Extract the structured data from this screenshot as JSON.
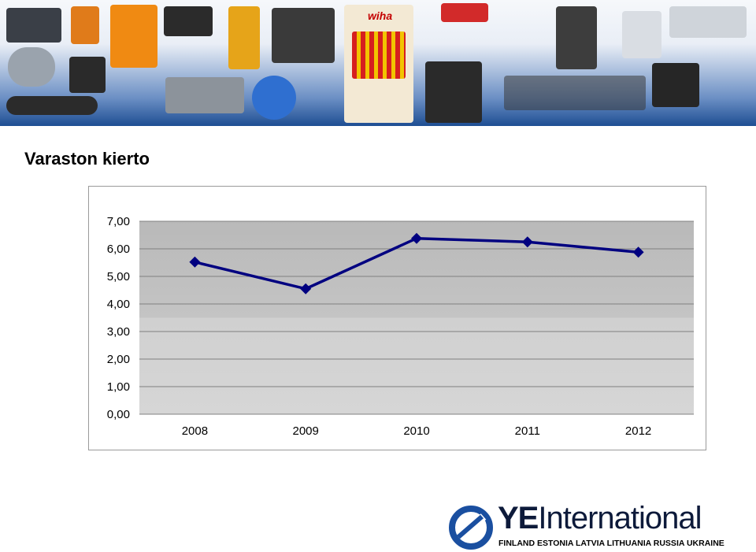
{
  "slide": {
    "title": "Varaston kierto"
  },
  "banner": {
    "visible_text": "wiha"
  },
  "chart_data": {
    "type": "line",
    "title": "",
    "xlabel": "",
    "ylabel": "",
    "categories": [
      "2008",
      "2009",
      "2010",
      "2011",
      "2012"
    ],
    "series": [
      {
        "values": [
          5.52,
          4.55,
          6.38,
          6.25,
          5.88
        ],
        "color": "#000080",
        "marker": "diamond"
      }
    ],
    "ylim": [
      0,
      7
    ],
    "yticks": [
      "0,00",
      "1,00",
      "2,00",
      "3,00",
      "4,00",
      "5,00",
      "6,00",
      "7,00"
    ],
    "grid": true,
    "legend": "none",
    "plot_background": "#c0c0c0"
  },
  "logo": {
    "brand_bold": "YE",
    "brand_rest": "International",
    "countries": "FINLAND  ESTONIA  LATVIA  LITHUANIA  RUSSIA  UKRAINE",
    "color_blue": "#1a4fa0"
  }
}
